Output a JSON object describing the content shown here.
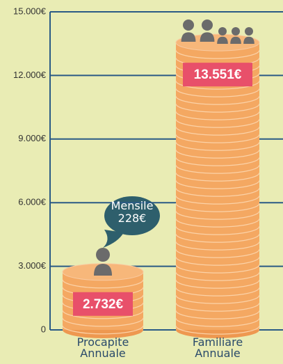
{
  "chart_data": {
    "type": "bar",
    "categories": [
      "Procapite Annuale",
      "Familiare Annuale"
    ],
    "values": [
      2732,
      13551
    ],
    "value_labels": [
      "2.732€",
      "13.551€"
    ],
    "color": "#f4a862",
    "ylim": [
      0,
      15000
    ],
    "yticks": [
      0,
      {
        "value": 3000,
        "label": "3.000€"
      },
      {
        "value": 6000,
        "label": "6.000€"
      },
      {
        "value": 9000,
        "label": "9.000€"
      },
      {
        "value": 12000,
        "label": "12.000€"
      },
      {
        "value": 15000,
        "label": "15.000€"
      }
    ],
    "grid": true,
    "annotation": "Mensile 228€"
  }
}
